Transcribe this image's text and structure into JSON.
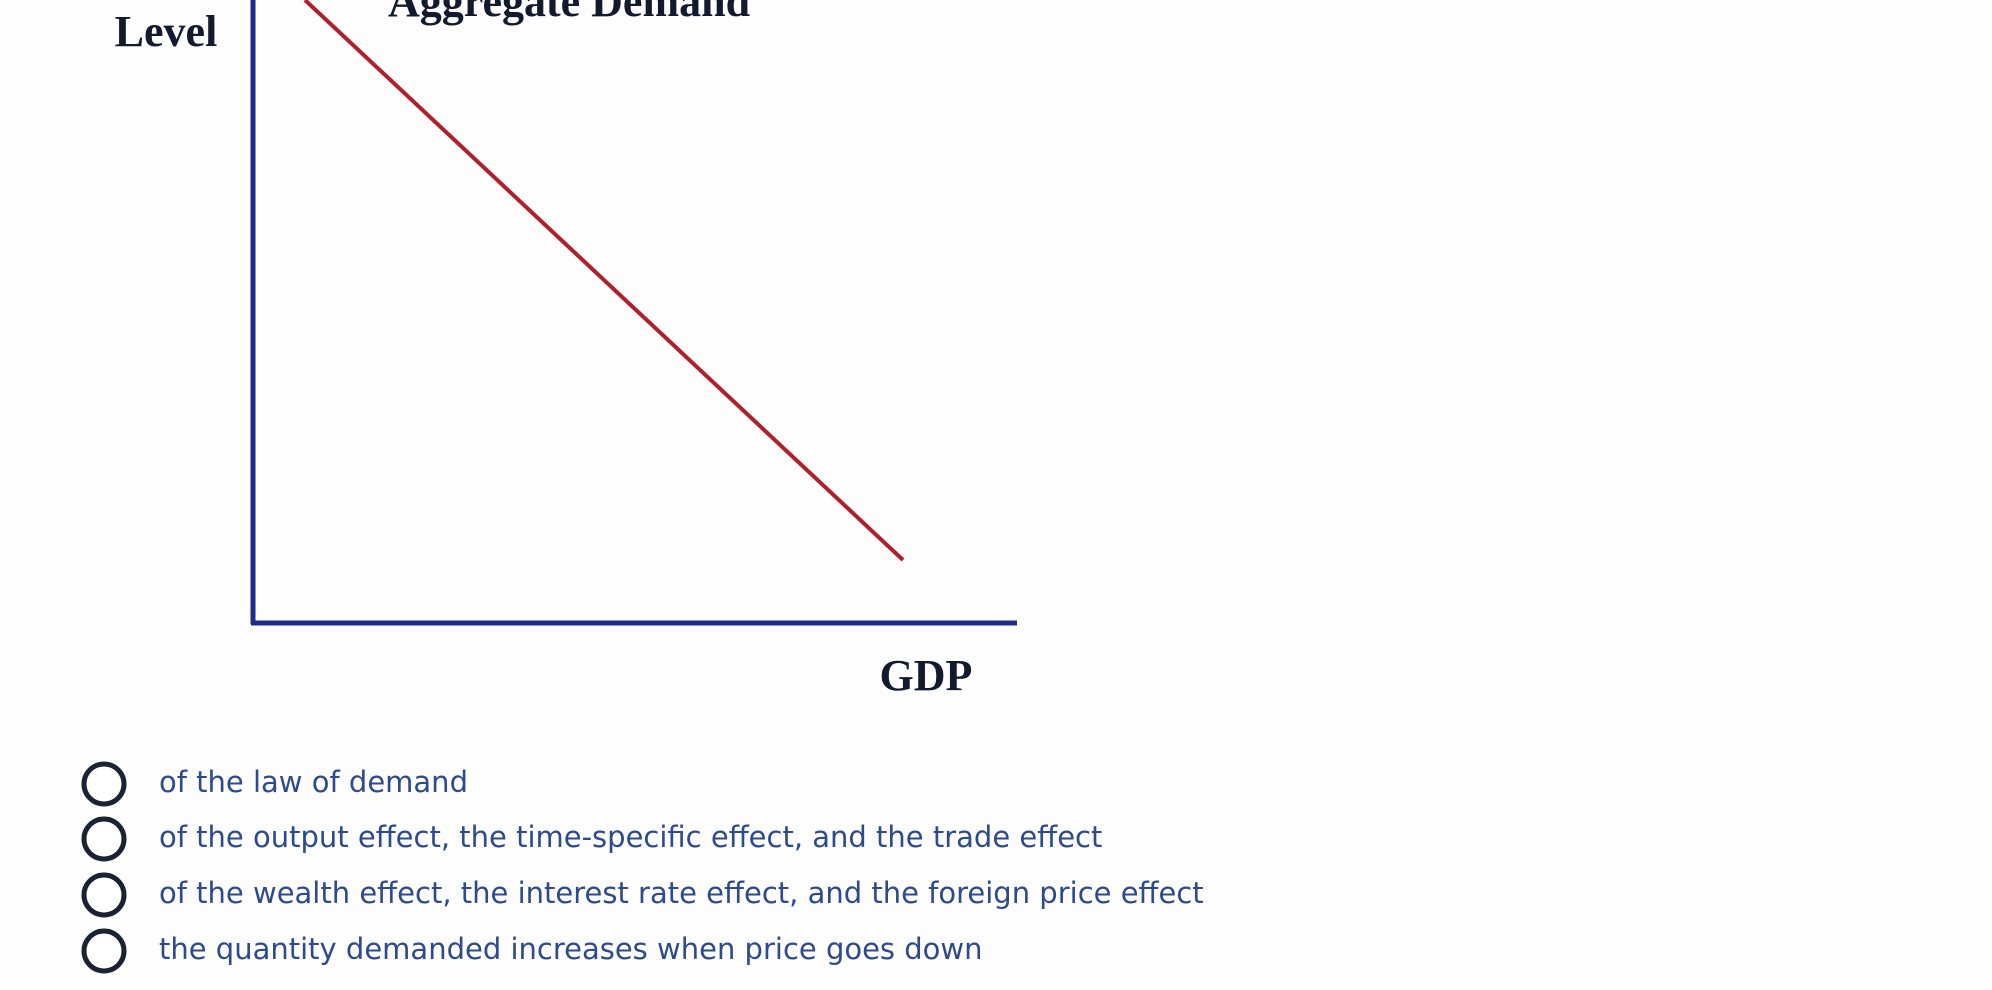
{
  "figure": {
    "y_axis_label": "Level",
    "curve_label": "Aggregate Demand",
    "x_axis_label": "GDP"
  },
  "options": [
    "of the law of demand",
    "of the output effect, the time-specific effect, and the trade effect",
    "of the wealth effect, the interest rate effect, and the foreign price effect",
    "the quantity demanded increases when price goes down"
  ]
}
